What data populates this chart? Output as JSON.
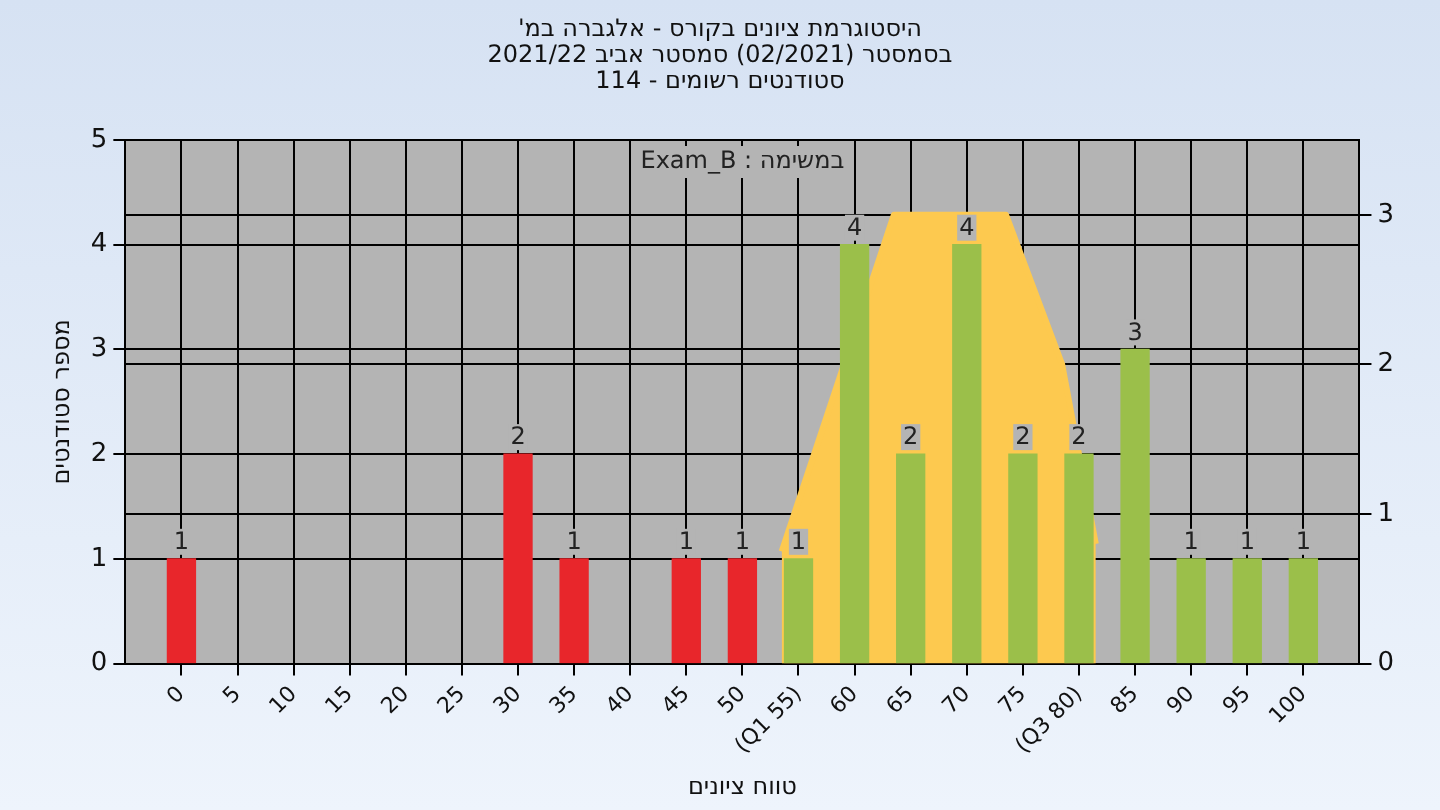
{
  "chart_data": {
    "type": "bar",
    "title": "היסטוגרמת ציונים בקורס - אלגברה במ'",
    "subtitle": "בסמסטר (02/2021) סמסטר אביב 2021/22\nסטודנטים רשומים - 114",
    "xlabel": "טווח ציונים",
    "ylabel": "מספר סטודנטים",
    "annotations": [
      "במשימה : Exam_B"
    ],
    "x": [
      0,
      30,
      35,
      45,
      50,
      55,
      60,
      65,
      70,
      75,
      80,
      85,
      90,
      95,
      100
    ],
    "series": [
      {
        "colors": [
          "#e8262b",
          "#e8262b",
          "#e8262b",
          "#e8262b",
          "#e8262b",
          "#9bbf4a",
          "#9bbf4a",
          "#9bbf4a",
          "#9bbf4a",
          "#9bbf4a",
          "#9bbf4a",
          "#9bbf4a",
          "#9bbf4a",
          "#9bbf4a",
          "#9bbf4a"
        ],
        "values": [
          1,
          2,
          1,
          1,
          1,
          1,
          4,
          2,
          4,
          2,
          2,
          3,
          1,
          1,
          1
        ],
        "value_labels": [
          "1",
          "2",
          "1",
          "1",
          "1",
          "1",
          "4",
          "2",
          "4",
          "2",
          "2",
          "3",
          "1",
          "1",
          "1"
        ]
      },
      {
        "type": "area",
        "axis": "y2",
        "color": "#fdc94f",
        "x": [
          53.5,
          63.5,
          73.5,
          78.5,
          81.5
        ],
        "values": [
          0.75,
          3,
          3,
          2,
          0.8
        ]
      }
    ],
    "xlim": [
      -5,
      105
    ],
    "xticks": [
      0,
      5,
      10,
      15,
      20,
      25,
      30,
      35,
      40,
      45,
      50,
      {
        "value": 55,
        "label": "(Q1 55)"
      },
      60,
      65,
      70,
      75,
      {
        "value": 80,
        "label": "(Q3 80)"
      },
      85,
      90,
      95,
      100
    ],
    "ylim": [
      0,
      5
    ],
    "yticks": [
      0,
      1,
      2,
      3,
      4,
      5
    ],
    "y2lim": [
      0,
      3.5
    ],
    "y2ticks": [
      0,
      1,
      2,
      3
    ],
    "grid": true
  }
}
